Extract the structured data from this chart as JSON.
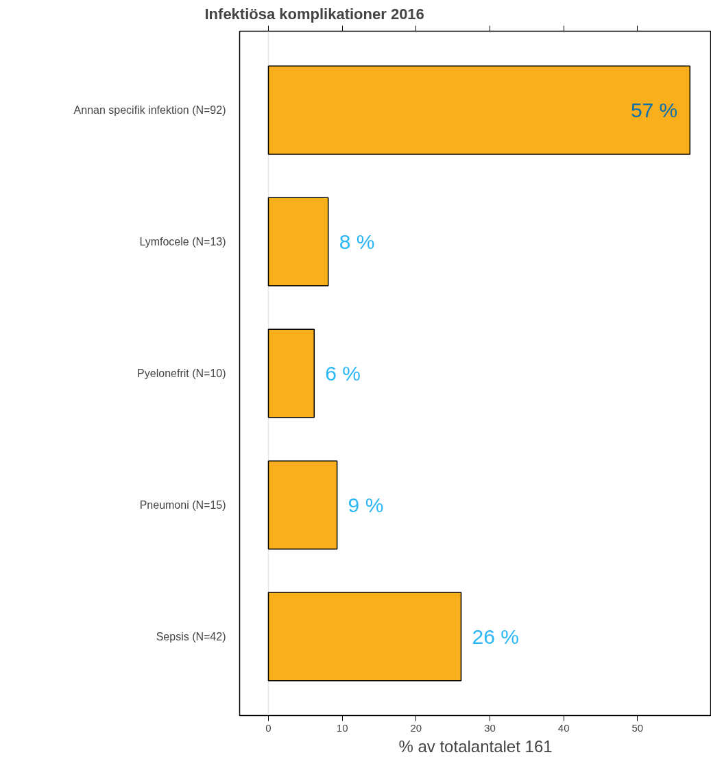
{
  "chart_data": {
    "type": "bar",
    "orientation": "horizontal",
    "title": "Infektiösa komplikationer 2016",
    "xlabel": "% av totalantalet 161",
    "categories": [
      "Annan specifik infektion (N=92)",
      "Lymfocele (N=13)",
      "Pyelonefrit (N=10)",
      "Pneumoni (N=15)",
      "Sepsis (N=42)"
    ],
    "values": [
      57.1,
      8.1,
      6.2,
      9.3,
      26.1
    ],
    "value_labels": [
      "57 %",
      "8 %",
      "6 %",
      "9 %",
      "26 %"
    ],
    "color": "#f9ae1b",
    "xlim": [
      -3.9,
      60
    ],
    "xticks": [
      0,
      10,
      20,
      30,
      40,
      50
    ],
    "ref_lines": [
      {
        "axis": "x",
        "value": 0,
        "label": null,
        "color": "#e6e6e6"
      }
    ],
    "grid": false
  }
}
